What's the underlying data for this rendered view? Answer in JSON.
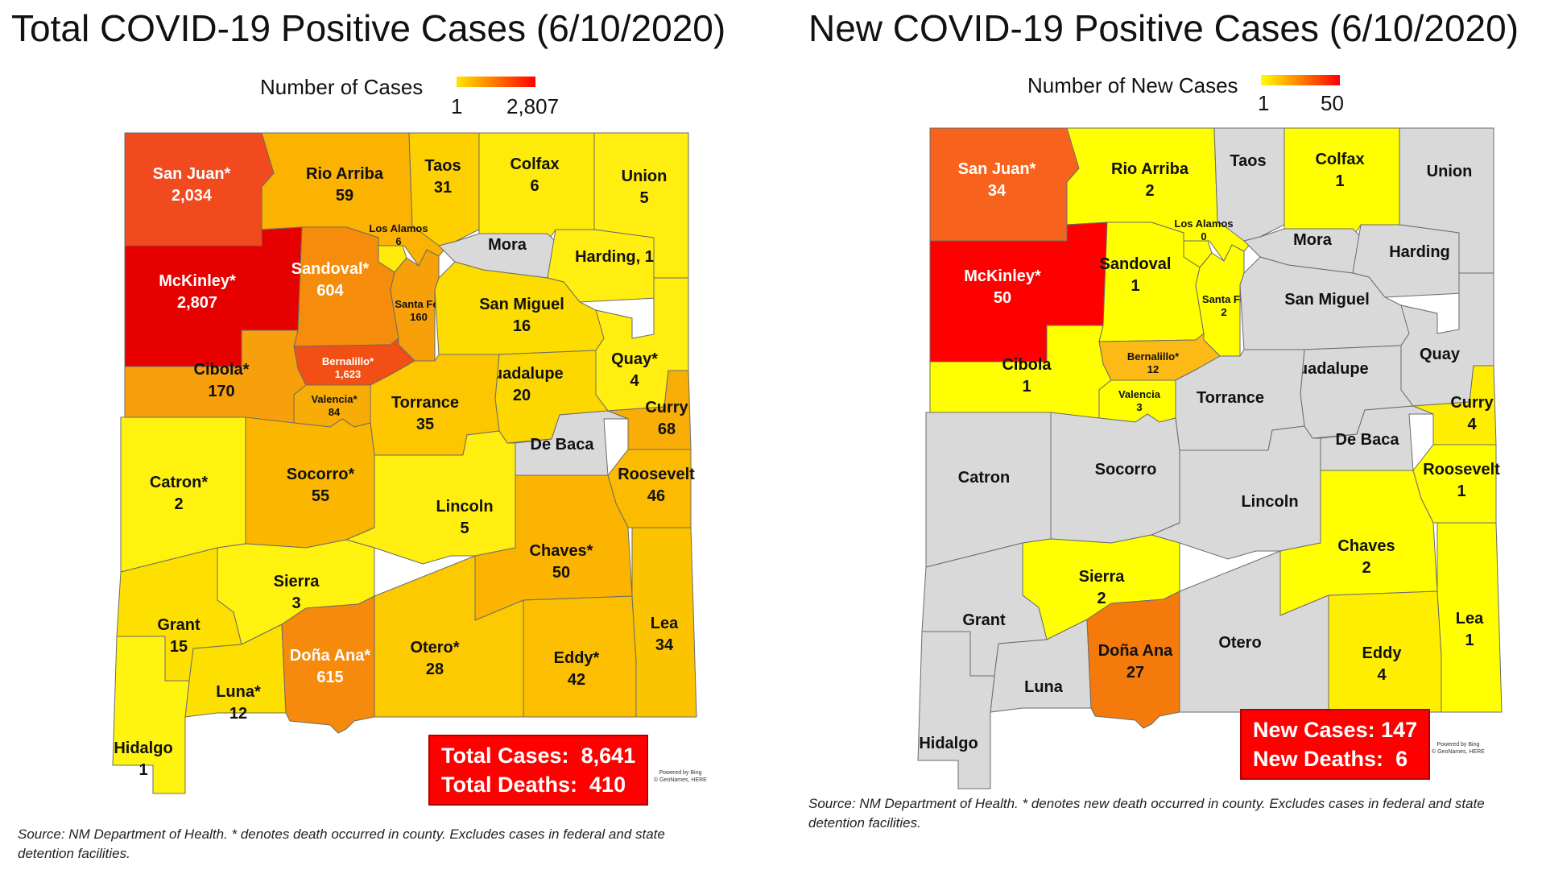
{
  "left": {
    "title": "Total COVID-19 Positive Cases (6/10/2020)",
    "legend": {
      "label": "Number of Cases",
      "min": "1",
      "max": "2,807",
      "color_low": "#ffe600",
      "color_high": "#ff0000"
    },
    "counties": [
      {
        "id": "san-juan",
        "name": "San Juan*",
        "value": "2,034",
        "color": "#f04a1e",
        "text": "#ffffff"
      },
      {
        "id": "rio-arriba",
        "name": "Rio Arriba",
        "value": "59",
        "color": "#fbb200",
        "text": "#111111"
      },
      {
        "id": "taos",
        "name": "Taos",
        "value": "31",
        "color": "#fed000",
        "text": "#111111"
      },
      {
        "id": "colfax",
        "name": "Colfax",
        "value": "6",
        "color": "#ffeb0a",
        "text": "#111111"
      },
      {
        "id": "union",
        "name": "Union",
        "value": "5",
        "color": "#ffee0f",
        "text": "#111111"
      },
      {
        "id": "mckinley",
        "name": "McKinley*",
        "value": "2,807",
        "color": "#e60000",
        "text": "#ffffff"
      },
      {
        "id": "los-alamos",
        "name": "Los Alamos",
        "value": "6",
        "color": "#ffeb0a",
        "text": "#111111"
      },
      {
        "id": "sandoval",
        "name": "Sandoval*",
        "value": "604",
        "color": "#f68c0b",
        "text": "#ffffff"
      },
      {
        "id": "mora",
        "name": "Mora",
        "value": "",
        "color": "#d9d9d9",
        "text": "#111111"
      },
      {
        "id": "harding",
        "name": "Harding, 1",
        "value": "",
        "color": "#ffee10",
        "text": "#111111"
      },
      {
        "id": "santa-fe",
        "name": "Santa Fe*",
        "value": "160",
        "color": "#f7a00a",
        "text": "#111111"
      },
      {
        "id": "san-miguel",
        "name": "San Miguel",
        "value": "16",
        "color": "#fddc00",
        "text": "#111111"
      },
      {
        "id": "bernalillo",
        "name": "Bernalillo*",
        "value": "1,623",
        "color": "#f34f14",
        "text": "#ffffff"
      },
      {
        "id": "cibola",
        "name": "Cibola*",
        "value": "170",
        "color": "#f7a00c",
        "text": "#111111"
      },
      {
        "id": "valencia",
        "name": "Valencia*",
        "value": "84",
        "color": "#f8ac06",
        "text": "#111111"
      },
      {
        "id": "quay",
        "name": "Quay*",
        "value": "4",
        "color": "#ffee0f",
        "text": "#111111"
      },
      {
        "id": "guadalupe",
        "name": "Guadalupe",
        "value": "20",
        "color": "#fdd800",
        "text": "#111111"
      },
      {
        "id": "torrance",
        "name": "Torrance",
        "value": "35",
        "color": "#fdc600",
        "text": "#111111"
      },
      {
        "id": "curry",
        "name": "Curry",
        "value": "68",
        "color": "#f9ad07",
        "text": "#111111"
      },
      {
        "id": "de-baca",
        "name": "De Baca",
        "value": "",
        "color": "#d9d9d9",
        "text": "#111111"
      },
      {
        "id": "catron",
        "name": "Catron*",
        "value": "2",
        "color": "#fff20f",
        "text": "#111111"
      },
      {
        "id": "socorro",
        "name": "Socorro*",
        "value": "55",
        "color": "#fbb600",
        "text": "#111111"
      },
      {
        "id": "roosevelt",
        "name": "Roosevelt",
        "value": "46",
        "color": "#fbbb00",
        "text": "#111111"
      },
      {
        "id": "lincoln",
        "name": "Lincoln",
        "value": "5",
        "color": "#ffee0f",
        "text": "#111111"
      },
      {
        "id": "chaves",
        "name": "Chaves*",
        "value": "50",
        "color": "#fbb400",
        "text": "#111111"
      },
      {
        "id": "sierra",
        "name": "Sierra",
        "value": "3",
        "color": "#fff20f",
        "text": "#111111"
      },
      {
        "id": "grant",
        "name": "Grant",
        "value": "15",
        "color": "#fde000",
        "text": "#111111"
      },
      {
        "id": "luna",
        "name": "Luna*",
        "value": "12",
        "color": "#fde000",
        "text": "#111111"
      },
      {
        "id": "dona-ana",
        "name": "Doña Ana*",
        "value": "615",
        "color": "#f68a0d",
        "text": "#ffffff"
      },
      {
        "id": "otero",
        "name": "Otero*",
        "value": "28",
        "color": "#fdc900",
        "text": "#111111"
      },
      {
        "id": "eddy",
        "name": "Eddy*",
        "value": "42",
        "color": "#fbbe00",
        "text": "#111111"
      },
      {
        "id": "lea",
        "name": "Lea",
        "value": "34",
        "color": "#fcc300",
        "text": "#111111"
      },
      {
        "id": "hidalgo",
        "name": "Hidalgo",
        "value": "1",
        "color": "#fff310",
        "text": "#111111"
      }
    ],
    "summary": {
      "cases_label": "Total Cases:",
      "cases": "8,641",
      "deaths_label": "Total Deaths:",
      "deaths": "410"
    },
    "attribution": "Powered by Bing\n© GeoNames, HERE",
    "source": "Source: NM Department of Health. * denotes death occurred in county. Excludes cases in federal and state detention facilities."
  },
  "right": {
    "title": "New COVID-19 Positive Cases (6/10/2020)",
    "legend": {
      "label": "Number of New Cases",
      "min": "1",
      "max": "50",
      "color_low": "#ffff00",
      "color_high": "#ff0000"
    },
    "counties": [
      {
        "id": "san-juan",
        "name": "San Juan*",
        "value": "34",
        "color": "#f7631d",
        "text": "#ffffff"
      },
      {
        "id": "rio-arriba",
        "name": "Rio Arriba",
        "value": "2",
        "color": "#ffff00",
        "text": "#111111"
      },
      {
        "id": "taos",
        "name": "Taos",
        "value": "",
        "color": "#d9d9d9",
        "text": "#111111"
      },
      {
        "id": "colfax",
        "name": "Colfax",
        "value": "1",
        "color": "#ffff00",
        "text": "#111111"
      },
      {
        "id": "union",
        "name": "Union",
        "value": "",
        "color": "#d9d9d9",
        "text": "#111111"
      },
      {
        "id": "mckinley",
        "name": "McKinley*",
        "value": "50",
        "color": "#ff0000",
        "text": "#ffffff"
      },
      {
        "id": "los-alamos",
        "name": "Los Alamos",
        "value": "0",
        "color": "#ffff00",
        "text": "#111111"
      },
      {
        "id": "sandoval",
        "name": "Sandoval",
        "value": "1",
        "color": "#ffff00",
        "text": "#111111"
      },
      {
        "id": "mora",
        "name": "Mora",
        "value": "",
        "color": "#d9d9d9",
        "text": "#111111"
      },
      {
        "id": "harding",
        "name": "Harding",
        "value": "",
        "color": "#d9d9d9",
        "text": "#111111"
      },
      {
        "id": "santa-fe",
        "name": "Santa Fe",
        "value": "2",
        "color": "#ffff00",
        "text": "#111111"
      },
      {
        "id": "san-miguel",
        "name": "San Miguel",
        "value": "",
        "color": "#d9d9d9",
        "text": "#111111"
      },
      {
        "id": "bernalillo",
        "name": "Bernalillo*",
        "value": "12",
        "color": "#fdba16",
        "text": "#111111"
      },
      {
        "id": "cibola",
        "name": "Cibola",
        "value": "1",
        "color": "#ffff00",
        "text": "#111111"
      },
      {
        "id": "valencia",
        "name": "Valencia",
        "value": "3",
        "color": "#ffff00",
        "text": "#111111"
      },
      {
        "id": "quay",
        "name": "Quay",
        "value": "",
        "color": "#d9d9d9",
        "text": "#111111"
      },
      {
        "id": "guadalupe",
        "name": "Guadalupe",
        "value": "",
        "color": "#d9d9d9",
        "text": "#111111"
      },
      {
        "id": "torrance",
        "name": "Torrance",
        "value": "",
        "color": "#d9d9d9",
        "text": "#111111"
      },
      {
        "id": "curry",
        "name": "Curry",
        "value": "4",
        "color": "#ffee00",
        "text": "#111111"
      },
      {
        "id": "de-baca",
        "name": "De Baca",
        "value": "",
        "color": "#d9d9d9",
        "text": "#111111"
      },
      {
        "id": "catron",
        "name": "Catron",
        "value": "",
        "color": "#d9d9d9",
        "text": "#111111"
      },
      {
        "id": "socorro",
        "name": "Socorro",
        "value": "",
        "color": "#d9d9d9",
        "text": "#111111"
      },
      {
        "id": "roosevelt",
        "name": "Roosevelt",
        "value": "1",
        "color": "#ffff00",
        "text": "#111111"
      },
      {
        "id": "lincoln",
        "name": "Lincoln",
        "value": "",
        "color": "#d9d9d9",
        "text": "#111111"
      },
      {
        "id": "chaves",
        "name": "Chaves",
        "value": "2",
        "color": "#ffff00",
        "text": "#111111"
      },
      {
        "id": "sierra",
        "name": "Sierra",
        "value": "2",
        "color": "#ffff00",
        "text": "#111111"
      },
      {
        "id": "grant",
        "name": "Grant",
        "value": "",
        "color": "#d9d9d9",
        "text": "#111111"
      },
      {
        "id": "luna",
        "name": "Luna",
        "value": "",
        "color": "#d9d9d9",
        "text": "#111111"
      },
      {
        "id": "dona-ana",
        "name": "Doña Ana",
        "value": "27",
        "color": "#f57a0c",
        "text": "#111111"
      },
      {
        "id": "otero",
        "name": "Otero",
        "value": "",
        "color": "#d9d9d9",
        "text": "#111111"
      },
      {
        "id": "eddy",
        "name": "Eddy",
        "value": "4",
        "color": "#ffee00",
        "text": "#111111"
      },
      {
        "id": "lea",
        "name": "Lea",
        "value": "1",
        "color": "#ffff00",
        "text": "#111111"
      },
      {
        "id": "hidalgo",
        "name": "Hidalgo",
        "value": "",
        "color": "#d9d9d9",
        "text": "#111111"
      }
    ],
    "summary": {
      "cases_label": "New Cases:",
      "cases": "147",
      "deaths_label": "New Deaths:",
      "deaths": "6"
    },
    "attribution": "Powered by Bing\n© GeoNames, HERE",
    "source": "Source: NM Department of Health. * denotes new death occurred in county. Excludes cases in federal and state detention facilities."
  }
}
